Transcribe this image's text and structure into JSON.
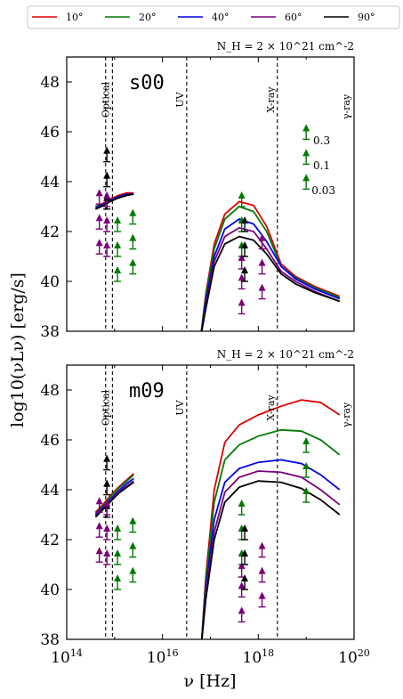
{
  "legend": [
    {
      "label": "10°",
      "color": "#e00000"
    },
    {
      "label": "20°",
      "color": "#007a00"
    },
    {
      "label": "40°",
      "color": "#0000ee"
    },
    {
      "label": "60°",
      "color": "#7a007a"
    },
    {
      "label": "90°",
      "color": "#000000"
    }
  ],
  "xlabel": "ν [Hz]",
  "ylabel": "log10(νLν) [erg/s]",
  "chart_data": [
    {
      "type": "line",
      "panel_label": "s00",
      "note": "N_H = 2 × 10^21 cm^-2",
      "xscale": "log",
      "xlim": [
        100000000000000.0,
        1e+20
      ],
      "ylim": [
        38,
        49
      ],
      "xticks": [
        "10^14",
        "10^16",
        "10^18",
        "10^20"
      ],
      "yticks": [
        38,
        40,
        42,
        44,
        46,
        48
      ],
      "bands": [
        {
          "x": 650000000000000.0,
          "label": ""
        },
        {
          "x": 900000000000000.0,
          "label": "Optical"
        },
        {
          "x": 3.2e+16,
          "label": "UV"
        },
        {
          "x": 2.5e+18,
          "label": "X-ray"
        }
      ],
      "gamma_label": "γ-ray",
      "optical_series": [
        {
          "name": "10°",
          "x": [
            400000000000000.0,
            600000000000000.0,
            800000000000000.0,
            1200000000000000.0,
            1800000000000000.0,
            2500000000000000.0
          ],
          "y": [
            43.0,
            43.15,
            43.3,
            43.45,
            43.55,
            43.55
          ]
        },
        {
          "name": "20°",
          "x": [
            400000000000000.0,
            600000000000000.0,
            800000000000000.0,
            1200000000000000.0,
            1800000000000000.0,
            2500000000000000.0
          ],
          "y": [
            43.0,
            43.1,
            43.25,
            43.4,
            43.5,
            43.5
          ]
        },
        {
          "name": "40°",
          "x": [
            400000000000000.0,
            600000000000000.0,
            800000000000000.0,
            1200000000000000.0,
            1800000000000000.0,
            2500000000000000.0
          ],
          "y": [
            42.95,
            43.1,
            43.25,
            43.4,
            43.5,
            43.5
          ]
        },
        {
          "name": "60°",
          "x": [
            400000000000000.0,
            600000000000000.0,
            800000000000000.0,
            1200000000000000.0,
            1800000000000000.0,
            2500000000000000.0
          ],
          "y": [
            42.9,
            43.05,
            43.2,
            43.35,
            43.45,
            43.5
          ]
        },
        {
          "name": "90°",
          "x": [
            400000000000000.0,
            600000000000000.0,
            800000000000000.0,
            1200000000000000.0,
            1800000000000000.0,
            2500000000000000.0
          ],
          "y": [
            42.9,
            43.05,
            43.2,
            43.35,
            43.45,
            43.5
          ]
        }
      ],
      "xray_series": [
        {
          "name": "10°",
          "x": [
            6.3e+16,
            8e+16,
            1.2e+17,
            2e+17,
            4e+17,
            8e+17,
            1.5e+18,
            3e+18,
            6e+18,
            1.5e+19,
            5e+19
          ],
          "y": [
            37.8,
            39.5,
            41.5,
            42.7,
            43.2,
            43.05,
            42.2,
            40.7,
            40.2,
            39.8,
            39.4
          ]
        },
        {
          "name": "20°",
          "x": [
            6.3e+16,
            8e+16,
            1.2e+17,
            2e+17,
            4e+17,
            8e+17,
            1.5e+18,
            3e+18,
            6e+18,
            1.5e+19,
            5e+19
          ],
          "y": [
            37.8,
            39.4,
            41.3,
            42.5,
            43.0,
            42.8,
            42.0,
            40.6,
            40.15,
            39.75,
            39.35
          ]
        },
        {
          "name": "40°",
          "x": [
            6.3e+16,
            8e+16,
            1.2e+17,
            2e+17,
            4e+17,
            8e+17,
            1.5e+18,
            3e+18,
            6e+18,
            1.5e+19,
            5e+19
          ],
          "y": [
            37.8,
            39.2,
            41.0,
            42.1,
            42.5,
            42.3,
            41.6,
            40.6,
            40.1,
            39.7,
            39.3
          ]
        },
        {
          "name": "60°",
          "x": [
            6.3e+16,
            8e+16,
            1.2e+17,
            2e+17,
            4e+17,
            8e+17,
            1.5e+18,
            3e+18,
            6e+18,
            1.5e+19,
            5e+19
          ],
          "y": [
            37.8,
            39.0,
            40.8,
            41.8,
            42.15,
            42.0,
            41.3,
            40.4,
            40.0,
            39.6,
            39.2
          ]
        },
        {
          "name": "90°",
          "x": [
            6.3e+16,
            8e+16,
            1.2e+17,
            2e+17,
            4e+17,
            8e+17,
            1.5e+18,
            3e+18,
            6e+18,
            1.5e+19,
            5e+19
          ],
          "y": [
            37.8,
            38.9,
            40.6,
            41.5,
            41.8,
            41.65,
            41.1,
            40.3,
            39.9,
            39.55,
            39.2
          ]
        }
      ],
      "lower_limits": [
        {
          "x": 690000000000000.0,
          "y": 45.3,
          "color": "#000000"
        },
        {
          "x": 690000000000000.0,
          "y": 44.3,
          "color": "#000000"
        },
        {
          "x": 690000000000000.0,
          "y": 43.4,
          "color": "#000000"
        },
        {
          "x": 480000000000000.0,
          "y": 43.6,
          "color": "#7a007a"
        },
        {
          "x": 480000000000000.0,
          "y": 42.6,
          "color": "#7a007a"
        },
        {
          "x": 480000000000000.0,
          "y": 41.6,
          "color": "#7a007a"
        },
        {
          "x": 690000000000000.0,
          "y": 43.5,
          "color": "#7a007a"
        },
        {
          "x": 690000000000000.0,
          "y": 42.5,
          "color": "#7a007a"
        },
        {
          "x": 690000000000000.0,
          "y": 41.5,
          "color": "#7a007a"
        },
        {
          "x": 1150000000000000.0,
          "y": 42.5,
          "color": "#007a00"
        },
        {
          "x": 1150000000000000.0,
          "y": 41.5,
          "color": "#007a00"
        },
        {
          "x": 1150000000000000.0,
          "y": 40.5,
          "color": "#007a00"
        },
        {
          "x": 2400000000000000.0,
          "y": 42.8,
          "color": "#007a00"
        },
        {
          "x": 2400000000000000.0,
          "y": 41.8,
          "color": "#007a00"
        },
        {
          "x": 2400000000000000.0,
          "y": 40.8,
          "color": "#007a00"
        },
        {
          "x": 4.5e+17,
          "y": 43.5,
          "color": "#007a00"
        },
        {
          "x": 4.5e+17,
          "y": 42.5,
          "color": "#007a00"
        },
        {
          "x": 4.5e+17,
          "y": 41.5,
          "color": "#007a00"
        },
        {
          "x": 4.5e+17,
          "y": 41.0,
          "color": "#7a007a"
        },
        {
          "x": 4.5e+17,
          "y": 40.2,
          "color": "#7a007a"
        },
        {
          "x": 4.5e+17,
          "y": 39.2,
          "color": "#7a007a"
        },
        {
          "x": 5.2e+17,
          "y": 42.5,
          "color": "#000000"
        },
        {
          "x": 5.2e+17,
          "y": 41.5,
          "color": "#000000"
        },
        {
          "x": 5.2e+17,
          "y": 40.5,
          "color": "#000000"
        },
        {
          "x": 1.2e+18,
          "y": 41.8,
          "color": "#7a007a"
        },
        {
          "x": 1.2e+18,
          "y": 40.8,
          "color": "#7a007a"
        },
        {
          "x": 1.2e+18,
          "y": 39.8,
          "color": "#7a007a"
        },
        {
          "x": 1e+19,
          "y": 46.2,
          "color": "#007a00"
        },
        {
          "x": 1e+19,
          "y": 45.2,
          "color": "#007a00"
        },
        {
          "x": 1e+19,
          "y": 44.2,
          "color": "#007a00"
        }
      ],
      "bracket_labels": [
        {
          "x": 1.4e+19,
          "y": 45.5,
          "text": "0.3"
        },
        {
          "x": 1.4e+19,
          "y": 44.5,
          "text": "0.1"
        },
        {
          "x": 1.3e+19,
          "y": 43.5,
          "text": "0.03"
        }
      ]
    },
    {
      "type": "line",
      "panel_label": "m09",
      "note": "N_H = 2 × 10^21 cm^-2",
      "xscale": "log",
      "xlim": [
        100000000000000.0,
        1e+20
      ],
      "ylim": [
        38,
        49
      ],
      "xticks": [
        "10^14",
        "10^16",
        "10^18",
        "10^20"
      ],
      "yticks": [
        38,
        40,
        42,
        44,
        46,
        48
      ],
      "bands": [
        {
          "x": 650000000000000.0,
          "label": ""
        },
        {
          "x": 900000000000000.0,
          "label": "Optical"
        },
        {
          "x": 3.2e+16,
          "label": "UV"
        },
        {
          "x": 2.5e+18,
          "label": "X-ray"
        }
      ],
      "gamma_label": "γ-ray",
      "optical_series": [
        {
          "name": "10°",
          "x": [
            400000000000000.0,
            600000000000000.0,
            800000000000000.0,
            1200000000000000.0,
            1800000000000000.0,
            2500000000000000.0
          ],
          "y": [
            43.1,
            43.45,
            43.75,
            44.1,
            44.4,
            44.65
          ]
        },
        {
          "name": "20°",
          "x": [
            400000000000000.0,
            600000000000000.0,
            800000000000000.0,
            1200000000000000.0,
            1800000000000000.0,
            2500000000000000.0
          ],
          "y": [
            43.05,
            43.4,
            43.7,
            44.05,
            44.35,
            44.6
          ]
        },
        {
          "name": "40°",
          "x": [
            400000000000000.0,
            600000000000000.0,
            800000000000000.0,
            1200000000000000.0,
            1800000000000000.0,
            2500000000000000.0
          ],
          "y": [
            43.0,
            43.35,
            43.6,
            43.95,
            44.25,
            44.45
          ]
        },
        {
          "name": "60°",
          "x": [
            400000000000000.0,
            600000000000000.0,
            800000000000000.0,
            1200000000000000.0,
            1800000000000000.0,
            2500000000000000.0
          ],
          "y": [
            42.95,
            43.3,
            43.55,
            43.9,
            44.15,
            44.35
          ]
        },
        {
          "name": "90°",
          "x": [
            400000000000000.0,
            600000000000000.0,
            800000000000000.0,
            1200000000000000.0,
            1800000000000000.0,
            2500000000000000.0
          ],
          "y": [
            42.9,
            43.25,
            43.5,
            43.85,
            44.1,
            44.3
          ]
        }
      ],
      "xray_series": [
        {
          "name": "10°",
          "x": [
            6.5e+16,
            8e+16,
            1.2e+17,
            2e+17,
            4e+17,
            1e+18,
            3e+18,
            8e+18,
            2e+19,
            5e+19
          ],
          "y": [
            37.8,
            40.5,
            44.0,
            45.9,
            46.6,
            47.0,
            47.35,
            47.6,
            47.5,
            47.0
          ]
        },
        {
          "name": "20°",
          "x": [
            6.5e+16,
            8e+16,
            1.2e+17,
            2e+17,
            4e+17,
            1e+18,
            3e+18,
            8e+18,
            2e+19,
            5e+19
          ],
          "y": [
            37.8,
            40.3,
            43.5,
            45.2,
            45.8,
            46.15,
            46.4,
            46.35,
            46.0,
            45.4
          ]
        },
        {
          "name": "40°",
          "x": [
            6.5e+16,
            8e+16,
            1.2e+17,
            2e+17,
            4e+17,
            1e+18,
            3e+18,
            8e+18,
            2e+19,
            5e+19
          ],
          "y": [
            37.8,
            40.0,
            42.8,
            44.3,
            44.85,
            45.1,
            45.2,
            45.05,
            44.6,
            44.0
          ]
        },
        {
          "name": "60°",
          "x": [
            6.5e+16,
            8e+16,
            1.2e+17,
            2e+17,
            4e+17,
            1e+18,
            3e+18,
            8e+18,
            2e+19,
            5e+19
          ],
          "y": [
            37.8,
            39.8,
            42.3,
            43.9,
            44.5,
            44.75,
            44.7,
            44.5,
            44.0,
            43.4
          ]
        },
        {
          "name": "90°",
          "x": [
            6.5e+16,
            8e+16,
            1.2e+17,
            2e+17,
            4e+17,
            1e+18,
            3e+18,
            8e+18,
            2e+19,
            5e+19
          ],
          "y": [
            37.8,
            39.6,
            42.0,
            43.5,
            44.1,
            44.35,
            44.3,
            44.05,
            43.6,
            43.0
          ]
        }
      ],
      "lower_limits": [
        {
          "x": 690000000000000.0,
          "y": 45.3,
          "color": "#000000"
        },
        {
          "x": 690000000000000.0,
          "y": 44.3,
          "color": "#000000"
        },
        {
          "x": 690000000000000.0,
          "y": 43.4,
          "color": "#000000"
        },
        {
          "x": 480000000000000.0,
          "y": 43.6,
          "color": "#7a007a"
        },
        {
          "x": 480000000000000.0,
          "y": 42.6,
          "color": "#7a007a"
        },
        {
          "x": 480000000000000.0,
          "y": 41.6,
          "color": "#7a007a"
        },
        {
          "x": 690000000000000.0,
          "y": 43.5,
          "color": "#7a007a"
        },
        {
          "x": 690000000000000.0,
          "y": 42.5,
          "color": "#7a007a"
        },
        {
          "x": 690000000000000.0,
          "y": 41.5,
          "color": "#7a007a"
        },
        {
          "x": 1150000000000000.0,
          "y": 42.5,
          "color": "#007a00"
        },
        {
          "x": 1150000000000000.0,
          "y": 41.5,
          "color": "#007a00"
        },
        {
          "x": 1150000000000000.0,
          "y": 40.5,
          "color": "#007a00"
        },
        {
          "x": 2400000000000000.0,
          "y": 42.8,
          "color": "#007a00"
        },
        {
          "x": 2400000000000000.0,
          "y": 41.8,
          "color": "#007a00"
        },
        {
          "x": 2400000000000000.0,
          "y": 40.8,
          "color": "#007a00"
        },
        {
          "x": 4.5e+17,
          "y": 43.5,
          "color": "#007a00"
        },
        {
          "x": 4.5e+17,
          "y": 42.5,
          "color": "#007a00"
        },
        {
          "x": 4.5e+17,
          "y": 41.5,
          "color": "#007a00"
        },
        {
          "x": 4.5e+17,
          "y": 41.0,
          "color": "#7a007a"
        },
        {
          "x": 4.5e+17,
          "y": 40.2,
          "color": "#7a007a"
        },
        {
          "x": 4.5e+17,
          "y": 39.2,
          "color": "#7a007a"
        },
        {
          "x": 5.2e+17,
          "y": 42.5,
          "color": "#000000"
        },
        {
          "x": 5.2e+17,
          "y": 41.5,
          "color": "#000000"
        },
        {
          "x": 5.2e+17,
          "y": 40.5,
          "color": "#000000"
        },
        {
          "x": 1.2e+18,
          "y": 41.8,
          "color": "#7a007a"
        },
        {
          "x": 1.2e+18,
          "y": 40.8,
          "color": "#7a007a"
        },
        {
          "x": 1.2e+18,
          "y": 39.8,
          "color": "#7a007a"
        },
        {
          "x": 1e+19,
          "y": 46.0,
          "color": "#007a00"
        },
        {
          "x": 1e+19,
          "y": 45.0,
          "color": "#007a00"
        },
        {
          "x": 1e+19,
          "y": 44.0,
          "color": "#007a00"
        }
      ],
      "bracket_labels": []
    }
  ]
}
